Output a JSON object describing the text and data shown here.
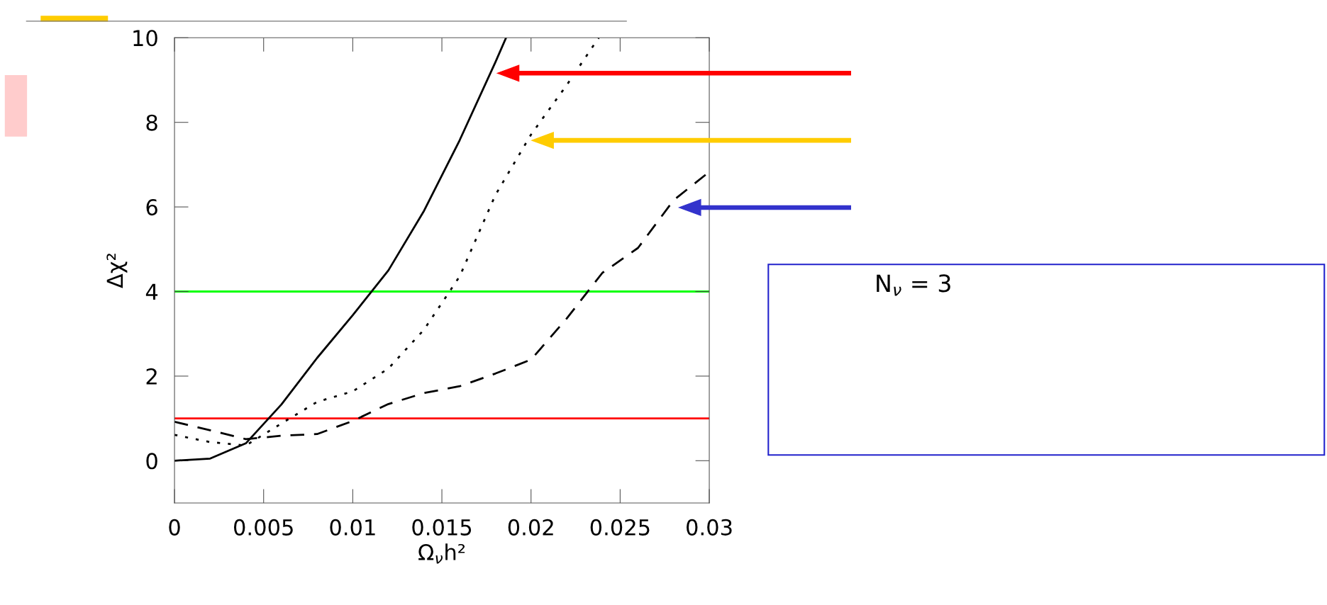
{
  "chart_data": {
    "type": "line",
    "xlabel": "Ω$_{ν}$h²",
    "ylabel": "Δχ²",
    "xlim": [
      0,
      0.03
    ],
    "ylim": [
      -1,
      10
    ],
    "xticks": [
      0,
      0.005,
      0.01,
      0.015,
      0.02,
      0.025,
      0.03
    ],
    "yticks": [
      0,
      2,
      4,
      6,
      8,
      10
    ],
    "grid": false,
    "marker": "none",
    "series": [
      {
        "color": "#000000",
        "line_style": "solid",
        "x": [
          0,
          0.002,
          0.004,
          0.006,
          0.008,
          0.01,
          0.012,
          0.014,
          0.016,
          0.018,
          0.0186
        ],
        "values": [
          0.0,
          0.05,
          0.41,
          1.33,
          2.43,
          3.44,
          4.5,
          5.91,
          7.58,
          9.42,
          10
        ]
      },
      {
        "color": "#000000",
        "line_style": "dotted",
        "x": [
          0,
          0.002,
          0.004,
          0.006,
          0.008,
          0.01,
          0.012,
          0.014,
          0.016,
          0.018,
          0.02,
          0.022,
          0.0238
        ],
        "values": [
          0.61,
          0.44,
          0.36,
          0.88,
          1.39,
          1.64,
          2.18,
          3.1,
          4.36,
          6.28,
          7.71,
          8.88,
          10
        ]
      },
      {
        "color": "#000000",
        "line_style": "dashed",
        "x": [
          0,
          0.002,
          0.004,
          0.006,
          0.008,
          0.01,
          0.012,
          0.014,
          0.016,
          0.018,
          0.02,
          0.022,
          0.024,
          0.026,
          0.028,
          0.03
        ],
        "values": [
          0.92,
          0.72,
          0.51,
          0.59,
          0.63,
          0.94,
          1.34,
          1.6,
          1.76,
          2.06,
          2.39,
          3.36,
          4.44,
          5.03,
          6.16,
          6.83
        ]
      }
    ],
    "ref_lines": [
      {
        "axis": "y",
        "value": 4,
        "color": "#00ff00"
      },
      {
        "axis": "y",
        "value": 1,
        "color": "#ff0000"
      }
    ],
    "annotations": [
      "N$_{ν}$ = 3"
    ]
  }
}
